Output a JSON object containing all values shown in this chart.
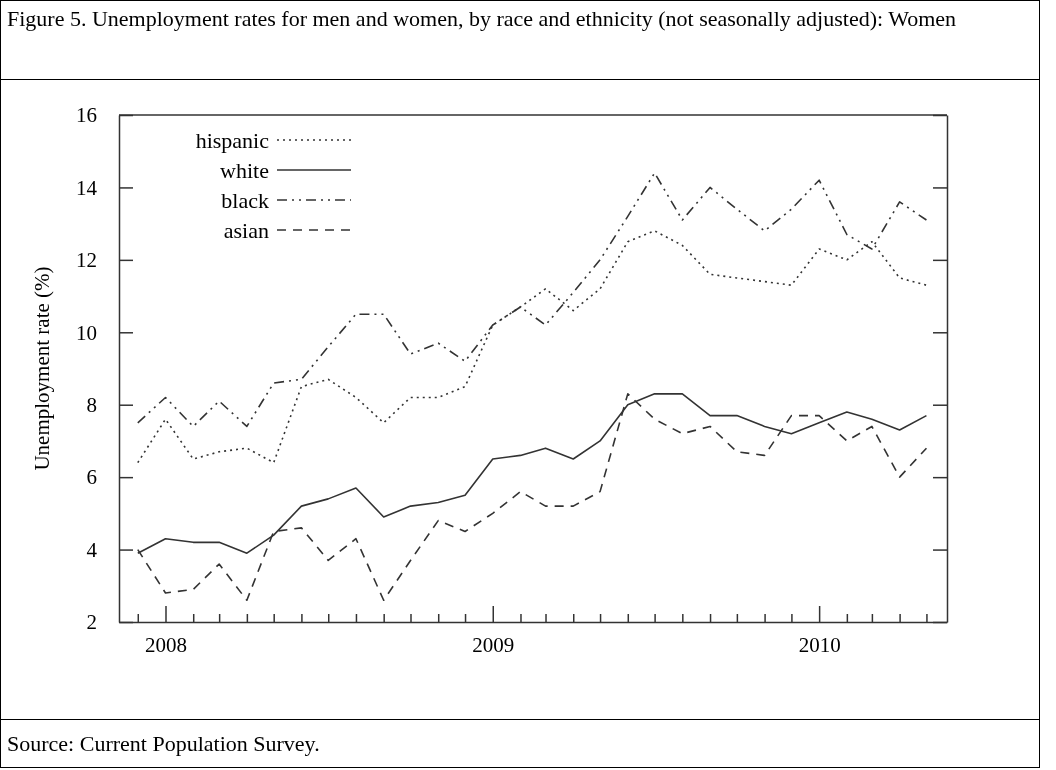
{
  "chart_data": {
    "type": "line",
    "title": "Figure 5. Unemployment rates for men and women, by race and ethnicity (not seasonally adjusted):  Women",
    "ylabel": "Unemployment rate (%)",
    "annotations": [
      "Source: Current Population Survey."
    ],
    "x": [
      "2007-12",
      "2008-01",
      "2008-02",
      "2008-03",
      "2008-04",
      "2008-05",
      "2008-06",
      "2008-07",
      "2008-08",
      "2008-09",
      "2008-10",
      "2008-11",
      "2008-12",
      "2009-01",
      "2009-02",
      "2009-03",
      "2009-04",
      "2009-05",
      "2009-06",
      "2009-07",
      "2009-08",
      "2009-09",
      "2009-10",
      "2009-11",
      "2009-12",
      "2010-01",
      "2010-02",
      "2010-03",
      "2010-04",
      "2010-05"
    ],
    "series": [
      {
        "name": "hispanic",
        "color": "#333333",
        "line_style": "dotted",
        "values": [
          6.4,
          7.6,
          6.5,
          6.7,
          6.8,
          6.4,
          8.5,
          8.7,
          8.2,
          7.5,
          8.2,
          8.2,
          8.5,
          10.2,
          10.7,
          11.2,
          10.6,
          11.2,
          12.5,
          12.8,
          12.4,
          11.6,
          11.5,
          11.4,
          11.3,
          12.3,
          12.0,
          12.5,
          11.5,
          11.3
        ]
      },
      {
        "name": "white",
        "color": "#333333",
        "line_style": "solid",
        "values": [
          3.9,
          4.3,
          4.2,
          4.2,
          3.9,
          4.4,
          5.2,
          5.4,
          5.7,
          4.9,
          5.2,
          5.3,
          5.5,
          6.5,
          6.6,
          6.8,
          6.5,
          7.0,
          8.0,
          8.3,
          8.3,
          7.7,
          7.7,
          7.4,
          7.2,
          7.5,
          7.8,
          7.6,
          7.3,
          7.7
        ]
      },
      {
        "name": "black",
        "color": "#333333",
        "line_style": "dashdotdot",
        "values": [
          7.5,
          8.2,
          7.4,
          8.1,
          7.4,
          8.6,
          8.7,
          9.6,
          10.5,
          10.5,
          9.4,
          9.7,
          9.2,
          10.2,
          10.7,
          10.2,
          11.1,
          12.0,
          13.2,
          14.4,
          13.1,
          14.0,
          13.4,
          12.8,
          13.4,
          14.2,
          12.7,
          12.3,
          13.6,
          13.1
        ]
      },
      {
        "name": "asian",
        "color": "#333333",
        "line_style": "dashed",
        "values": [
          4.0,
          2.8,
          2.9,
          3.6,
          2.6,
          4.5,
          4.6,
          3.7,
          4.3,
          2.6,
          3.7,
          4.8,
          4.5,
          5.0,
          5.6,
          5.2,
          5.2,
          5.6,
          8.3,
          7.6,
          7.2,
          7.4,
          6.7,
          6.6,
          7.7,
          7.7,
          7.0,
          7.4,
          6.0,
          6.8
        ]
      }
    ],
    "xlim": [
      "2007-11-10",
      "2010-05-24"
    ],
    "xticks": [
      {
        "value": "2007-12",
        "label": null
      },
      {
        "value": "2008-01",
        "label": "2008"
      },
      {
        "value": "2008-02",
        "label": null
      },
      {
        "value": "2008-03",
        "label": null
      },
      {
        "value": "2008-04",
        "label": null
      },
      {
        "value": "2008-05",
        "label": null
      },
      {
        "value": "2008-06",
        "label": null
      },
      {
        "value": "2008-07",
        "label": null
      },
      {
        "value": "2008-08",
        "label": null
      },
      {
        "value": "2008-09",
        "label": null
      },
      {
        "value": "2008-10",
        "label": null
      },
      {
        "value": "2008-11",
        "label": null
      },
      {
        "value": "2008-12",
        "label": null
      },
      {
        "value": "2009-01",
        "label": "2009"
      },
      {
        "value": "2009-02",
        "label": null
      },
      {
        "value": "2009-03",
        "label": null
      },
      {
        "value": "2009-04",
        "label": null
      },
      {
        "value": "2009-05",
        "label": null
      },
      {
        "value": "2009-06",
        "label": null
      },
      {
        "value": "2009-07",
        "label": null
      },
      {
        "value": "2009-08",
        "label": null
      },
      {
        "value": "2009-09",
        "label": null
      },
      {
        "value": "2009-10",
        "label": null
      },
      {
        "value": "2009-11",
        "label": null
      },
      {
        "value": "2009-12",
        "label": null
      },
      {
        "value": "2010-01",
        "label": "2010"
      },
      {
        "value": "2010-02",
        "label": null
      },
      {
        "value": "2010-03",
        "label": null
      },
      {
        "value": "2010-04",
        "label": null
      },
      {
        "value": "2010-05",
        "label": null
      }
    ],
    "ylim": [
      2,
      16
    ],
    "yticks": [
      2,
      4,
      6,
      8,
      10,
      12,
      14,
      16
    ],
    "grid": false,
    "legend": "top left",
    "marker": "none"
  }
}
